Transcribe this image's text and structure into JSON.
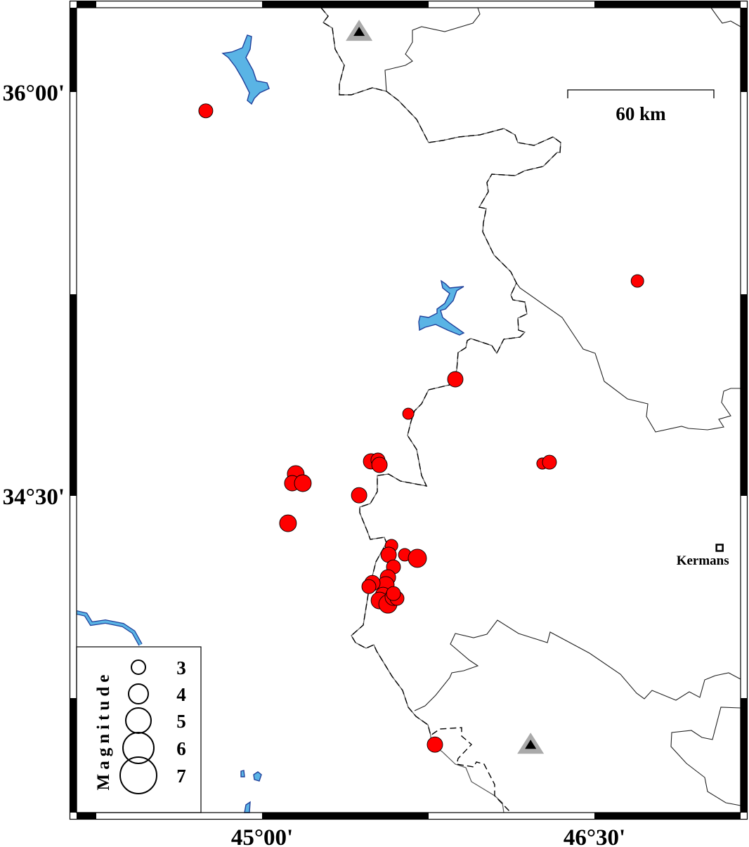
{
  "map": {
    "region": {
      "lon_range": [
        44.163,
        47.16
      ],
      "lat_range": [
        33.323,
        36.313
      ]
    },
    "axes": {
      "lat_ticks": [
        {
          "value": 36.0,
          "label": "36°00'"
        },
        {
          "value": 34.5,
          "label": "34°30'"
        }
      ],
      "lon_ticks": [
        {
          "value": 45.0,
          "label": "45°00'"
        },
        {
          "value": 46.5,
          "label": "46°30'"
        }
      ]
    },
    "scale_bar": {
      "label": "60 km",
      "length_km": 60
    },
    "legend": {
      "title": "Magnitude",
      "entries": [
        {
          "mag": 3,
          "label": "3"
        },
        {
          "mag": 4,
          "label": "4"
        },
        {
          "mag": 5,
          "label": "5"
        },
        {
          "mag": 6,
          "label": "6"
        },
        {
          "mag": 7,
          "label": "7"
        }
      ]
    },
    "city": {
      "name": "Kermans",
      "lon": 47.065,
      "lat": 34.307
    },
    "stations": [
      {
        "lon": 45.438,
        "lat": 36.224
      },
      {
        "lon": 46.212,
        "lat": 33.576
      }
    ],
    "colors": {
      "quake": "#ff0000",
      "lake": "#5ab4e5",
      "station_outer": "#aaaaaa",
      "station_inner": "#000000"
    },
    "earthquakes": [
      [
        44.746,
        35.93,
        3.0
      ],
      [
        46.694,
        35.298,
        2.75
      ],
      [
        45.872,
        34.933,
        3.25
      ],
      [
        45.66,
        34.805,
        2.5
      ],
      [
        45.152,
        34.581,
        3.5
      ],
      [
        45.136,
        34.547,
        3.25
      ],
      [
        45.184,
        34.547,
        3.5
      ],
      [
        45.117,
        34.398,
        3.5
      ],
      [
        45.438,
        34.502,
        3.25
      ],
      [
        45.492,
        34.628,
        3.25
      ],
      [
        45.523,
        34.633,
        3.0
      ],
      [
        45.53,
        34.615,
        3.25
      ],
      [
        46.265,
        34.62,
        2.5
      ],
      [
        46.297,
        34.625,
        3.0
      ],
      [
        45.584,
        34.315,
        2.75
      ],
      [
        45.571,
        34.281,
        3.25
      ],
      [
        45.593,
        34.236,
        3.0
      ],
      [
        45.644,
        34.281,
        2.75
      ],
      [
        45.701,
        34.268,
        3.75
      ],
      [
        45.568,
        34.197,
        3.25
      ],
      [
        45.558,
        34.169,
        3.5
      ],
      [
        45.498,
        34.176,
        3.25
      ],
      [
        45.482,
        34.163,
        3.0
      ],
      [
        45.546,
        34.132,
        3.25
      ],
      [
        45.53,
        34.111,
        3.5
      ],
      [
        45.568,
        34.098,
        3.75
      ],
      [
        45.593,
        34.124,
        3.5
      ],
      [
        45.609,
        34.119,
        3.0
      ],
      [
        45.593,
        34.137,
        3.0
      ],
      [
        45.78,
        33.576,
        3.25
      ]
    ]
  }
}
